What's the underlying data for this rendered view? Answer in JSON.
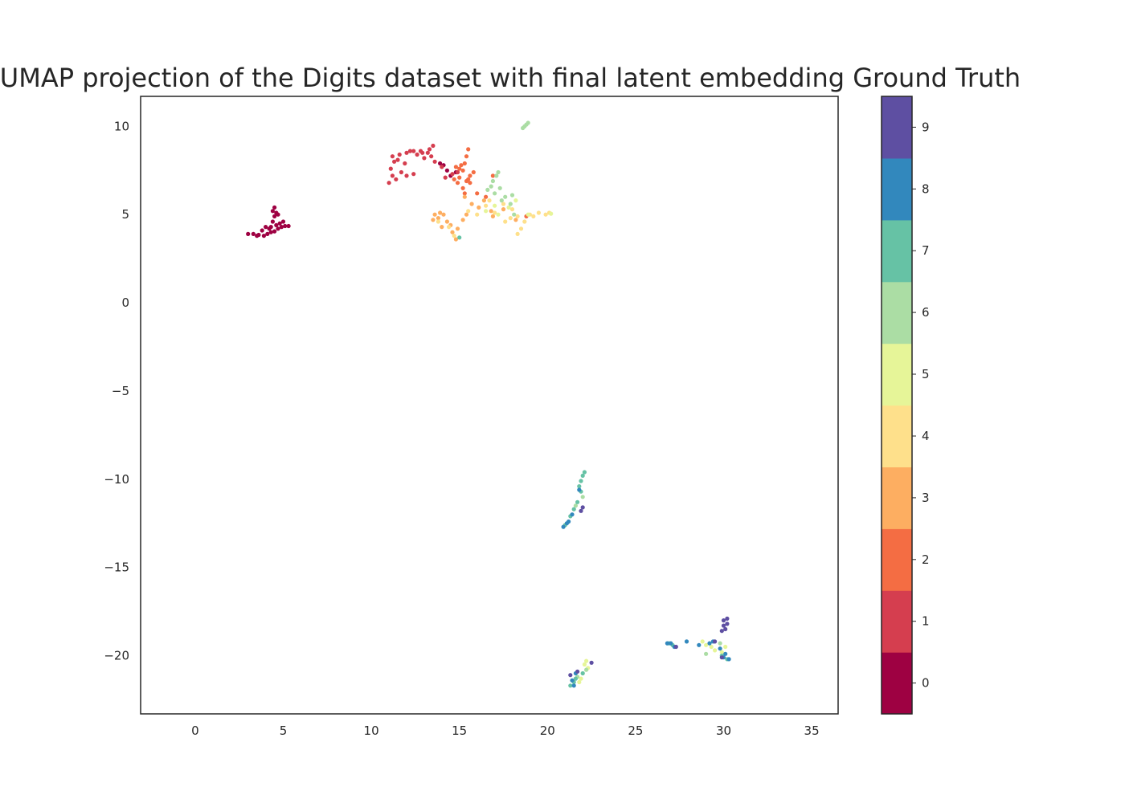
{
  "chart_data": {
    "type": "scatter",
    "title": "UMAP projection of the Digits dataset with final latent embedding Ground Truth",
    "xlabel": "",
    "ylabel": "",
    "xlim": [
      -3.1,
      36.5
    ],
    "ylim": [
      -23.3,
      11.7
    ],
    "xticks": [
      "0",
      "5",
      "10",
      "15",
      "20",
      "25",
      "30",
      "35"
    ],
    "yticks": [
      "10",
      "5",
      "0",
      "−5",
      "−10",
      "−15",
      "−20"
    ],
    "grid": false,
    "colorbar": {
      "labels": [
        "0",
        "1",
        "2",
        "3",
        "4",
        "5",
        "6",
        "7",
        "8",
        "9"
      ],
      "colors": [
        "#9e0142",
        "#d53e4f",
        "#f46d43",
        "#fdae61",
        "#fee08b",
        "#e6f598",
        "#abdda4",
        "#66c2a5",
        "#3288bd",
        "#5e4fa2"
      ],
      "colormap": "Spectral"
    },
    "clusters": [
      {
        "label": 0,
        "points": [
          [
            3.0,
            3.9
          ],
          [
            3.3,
            3.9
          ],
          [
            3.6,
            3.85
          ],
          [
            3.9,
            3.8
          ],
          [
            4.1,
            3.9
          ],
          [
            4.3,
            4.0
          ],
          [
            4.5,
            4.05
          ],
          [
            4.7,
            4.2
          ],
          [
            4.9,
            4.3
          ],
          [
            5.1,
            4.35
          ],
          [
            5.3,
            4.35
          ],
          [
            4.4,
            4.6
          ],
          [
            4.5,
            4.9
          ],
          [
            4.6,
            5.1
          ],
          [
            4.5,
            5.4
          ],
          [
            4.7,
            5.0
          ],
          [
            4.2,
            4.2
          ],
          [
            4.0,
            4.3
          ],
          [
            3.8,
            4.1
          ],
          [
            4.8,
            4.5
          ],
          [
            5.0,
            4.6
          ],
          [
            4.4,
            5.2
          ],
          [
            3.5,
            3.8
          ],
          [
            4.6,
            4.4
          ],
          [
            4.3,
            4.3
          ]
        ]
      },
      {
        "label": 0,
        "points": [
          [
            13.9,
            7.9
          ],
          [
            14.1,
            7.8
          ],
          [
            14.3,
            7.5
          ],
          [
            14.8,
            7.4
          ],
          [
            14.5,
            7.2
          ]
        ]
      },
      {
        "label": 1,
        "points": [
          [
            11.0,
            6.8
          ],
          [
            11.2,
            7.2
          ],
          [
            11.1,
            7.6
          ],
          [
            11.3,
            8.0
          ],
          [
            11.2,
            8.3
          ],
          [
            11.6,
            8.4
          ],
          [
            12.0,
            8.5
          ],
          [
            12.4,
            8.6
          ],
          [
            12.8,
            8.6
          ],
          [
            13.2,
            8.5
          ],
          [
            13.5,
            8.9
          ],
          [
            13.4,
            8.3
          ],
          [
            13.6,
            8.0
          ],
          [
            12.0,
            7.2
          ],
          [
            12.4,
            7.3
          ],
          [
            11.7,
            7.4
          ],
          [
            11.5,
            8.1
          ],
          [
            12.6,
            8.4
          ],
          [
            13.0,
            8.2
          ],
          [
            11.9,
            7.9
          ],
          [
            13.3,
            8.7
          ],
          [
            12.2,
            8.6
          ],
          [
            14.0,
            7.7
          ],
          [
            14.6,
            7.3
          ],
          [
            14.2,
            7.1
          ],
          [
            14.9,
            7.4
          ],
          [
            11.4,
            7.0
          ],
          [
            12.9,
            8.5
          ]
        ]
      },
      {
        "label": 2,
        "points": [
          [
            15.0,
            7.1
          ],
          [
            15.2,
            7.5
          ],
          [
            15.3,
            7.9
          ],
          [
            15.4,
            8.3
          ],
          [
            15.5,
            8.7
          ],
          [
            15.1,
            7.8
          ],
          [
            14.7,
            7.0
          ],
          [
            14.9,
            6.8
          ],
          [
            15.4,
            6.9
          ],
          [
            15.2,
            6.5
          ],
          [
            15.6,
            7.2
          ],
          [
            15.8,
            7.4
          ],
          [
            16.0,
            6.2
          ],
          [
            16.5,
            6.0
          ],
          [
            16.9,
            7.2
          ],
          [
            15.6,
            6.8
          ],
          [
            15.3,
            6.2
          ],
          [
            15.5,
            7.0
          ],
          [
            18.8,
            4.9
          ],
          [
            15.0,
            7.6
          ],
          [
            14.8,
            7.7
          ]
        ]
      },
      {
        "label": 3,
        "points": [
          [
            13.6,
            5.0
          ],
          [
            13.8,
            4.8
          ],
          [
            14.1,
            5.0
          ],
          [
            14.3,
            4.6
          ],
          [
            14.5,
            4.4
          ],
          [
            14.6,
            4.0
          ],
          [
            14.8,
            3.6
          ],
          [
            14.9,
            4.2
          ],
          [
            15.2,
            4.7
          ],
          [
            15.4,
            5.0
          ],
          [
            15.7,
            5.6
          ],
          [
            16.1,
            5.4
          ],
          [
            16.4,
            5.8
          ],
          [
            16.8,
            5.2
          ],
          [
            17.5,
            5.3
          ],
          [
            13.5,
            4.7
          ],
          [
            14.0,
            4.3
          ],
          [
            15.3,
            6.0
          ],
          [
            16.9,
            4.9
          ],
          [
            18.2,
            4.7
          ],
          [
            13.9,
            5.1
          ]
        ]
      },
      {
        "label": 4,
        "points": [
          [
            15.5,
            5.2
          ],
          [
            16.0,
            5.0
          ],
          [
            16.5,
            5.5
          ],
          [
            17.0,
            5.1
          ],
          [
            17.5,
            5.6
          ],
          [
            18.0,
            5.3
          ],
          [
            18.3,
            4.9
          ],
          [
            18.5,
            4.2
          ],
          [
            18.3,
            3.9
          ],
          [
            17.6,
            4.6
          ],
          [
            19.0,
            5.0
          ],
          [
            19.5,
            5.1
          ],
          [
            19.9,
            5.0
          ],
          [
            20.1,
            5.1
          ],
          [
            14.4,
            4.3
          ],
          [
            14.7,
            3.8
          ],
          [
            13.8,
            4.6
          ],
          [
            16.7,
            5.8
          ],
          [
            18.7,
            4.6
          ],
          [
            19.2,
            4.9
          ],
          [
            17.9,
            4.8
          ]
        ]
      },
      {
        "label": 5,
        "points": [
          [
            16.5,
            5.2
          ],
          [
            17.2,
            5.0
          ],
          [
            17.8,
            5.4
          ],
          [
            18.2,
            5.8
          ],
          [
            18.9,
            5.0
          ],
          [
            20.2,
            5.05
          ],
          [
            17.0,
            5.5
          ],
          [
            22.1,
            -20.5
          ],
          [
            22.3,
            -20.7
          ],
          [
            22.0,
            -21.0
          ],
          [
            21.9,
            -21.3
          ],
          [
            22.2,
            -20.3
          ],
          [
            29.0,
            -19.4
          ],
          [
            29.5,
            -19.7
          ],
          [
            29.9,
            -19.8
          ],
          [
            28.8,
            -19.2
          ],
          [
            29.3,
            -19.5
          ],
          [
            21.8,
            -21.5
          ],
          [
            30.1,
            -19.5
          ]
        ]
      },
      {
        "label": 6,
        "points": [
          [
            16.6,
            6.4
          ],
          [
            17.0,
            6.2
          ],
          [
            17.3,
            6.5
          ],
          [
            17.6,
            6.0
          ],
          [
            18.0,
            6.1
          ],
          [
            17.1,
            7.2
          ],
          [
            17.2,
            7.4
          ],
          [
            16.9,
            6.9
          ],
          [
            17.9,
            5.6
          ],
          [
            18.1,
            5.0
          ],
          [
            18.6,
            9.9
          ],
          [
            18.7,
            10.0
          ],
          [
            18.8,
            10.1
          ],
          [
            18.9,
            10.2
          ],
          [
            16.8,
            6.6
          ],
          [
            17.4,
            5.8
          ],
          [
            21.6,
            -11.5
          ],
          [
            22.0,
            -11.0
          ],
          [
            21.7,
            -21.2
          ],
          [
            22.2,
            -20.8
          ],
          [
            29.8,
            -19.3
          ],
          [
            29.0,
            -19.9
          ]
        ]
      },
      {
        "label": 7,
        "points": [
          [
            22.1,
            -9.6
          ],
          [
            22.0,
            -9.8
          ],
          [
            21.9,
            -10.1
          ],
          [
            21.8,
            -10.4
          ],
          [
            21.9,
            -10.7
          ],
          [
            21.7,
            -11.3
          ],
          [
            21.5,
            -11.7
          ],
          [
            21.3,
            -12.1
          ],
          [
            21.0,
            -12.6
          ],
          [
            21.3,
            -21.7
          ],
          [
            21.5,
            -21.5
          ],
          [
            22.0,
            -21.0
          ],
          [
            21.6,
            -21.3
          ],
          [
            30.2,
            -20.2
          ],
          [
            29.9,
            -20.0
          ],
          [
            27.1,
            -19.4
          ],
          [
            26.9,
            -19.3
          ],
          [
            15.0,
            3.7
          ]
        ]
      },
      {
        "label": 8,
        "points": [
          [
            21.8,
            -10.6
          ],
          [
            21.4,
            -12.0
          ],
          [
            21.2,
            -12.4
          ],
          [
            20.9,
            -12.7
          ],
          [
            21.1,
            -12.5
          ],
          [
            21.5,
            -21.7
          ],
          [
            21.6,
            -21.0
          ],
          [
            21.4,
            -21.4
          ],
          [
            27.0,
            -19.3
          ],
          [
            27.2,
            -19.5
          ],
          [
            27.9,
            -19.2
          ],
          [
            29.2,
            -19.3
          ],
          [
            29.8,
            -19.6
          ],
          [
            30.0,
            -20.1
          ],
          [
            30.3,
            -20.2
          ],
          [
            28.6,
            -19.4
          ],
          [
            30.1,
            -19.9
          ],
          [
            29.4,
            -19.2
          ],
          [
            26.8,
            -19.3
          ]
        ]
      },
      {
        "label": 9,
        "points": [
          [
            22.0,
            -11.6
          ],
          [
            21.9,
            -11.8
          ],
          [
            30.0,
            -18.0
          ],
          [
            30.2,
            -17.9
          ],
          [
            30.0,
            -18.3
          ],
          [
            30.1,
            -18.5
          ],
          [
            29.9,
            -18.6
          ],
          [
            30.2,
            -18.2
          ],
          [
            22.5,
            -20.4
          ],
          [
            21.7,
            -20.9
          ],
          [
            21.3,
            -21.1
          ],
          [
            27.3,
            -19.5
          ],
          [
            29.5,
            -19.2
          ],
          [
            29.9,
            -20.1
          ]
        ]
      }
    ]
  }
}
